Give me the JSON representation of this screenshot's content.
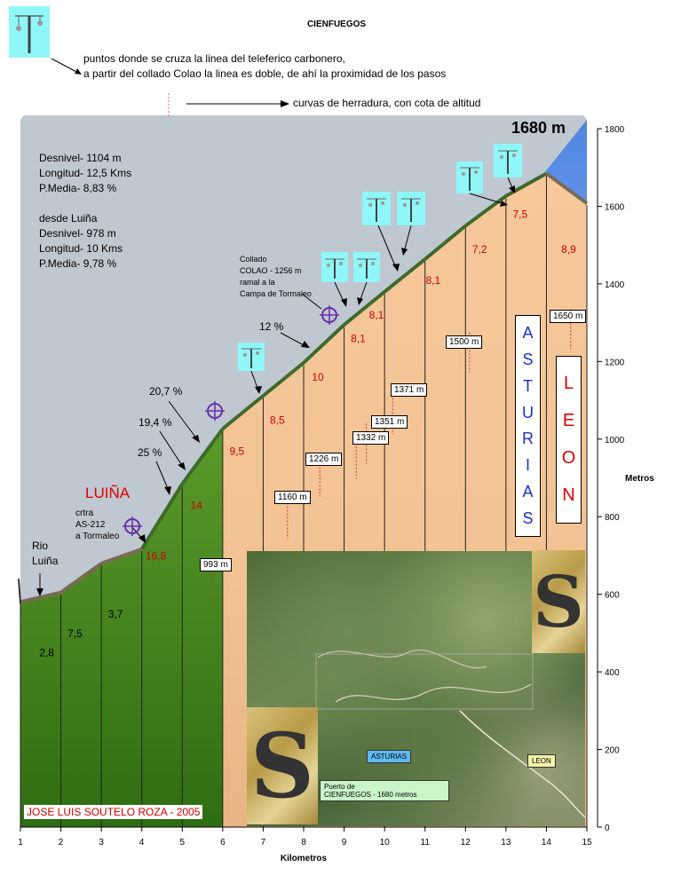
{
  "title": "CIENFUEGOS",
  "legend": {
    "cable_crossing_line1": "puntos donde se cruza la linea del teleferico carbonero,",
    "cable_crossing_line2": "a partir del collado Colao la linea es doble, de ahí la proximidad de los pasos",
    "hairpin": "curvas de herradura, con cota de altitud"
  },
  "stats": {
    "total": [
      "Desnivel- 1104 m",
      "Longitud- 12,5 Kms",
      "P.Media- 8,83 %"
    ],
    "from_label": "desde Luiña",
    "from_luina": [
      "Desnivel- 978 m",
      "Longitud- 10 Kms",
      "P.Media- 9,78 %"
    ]
  },
  "summit_label": "1680 m",
  "labels": {
    "luina": "LUIÑA",
    "crtra": [
      "crtra",
      "AS-212",
      "a Tormaleo"
    ],
    "rio": [
      "Rio",
      "Luiña"
    ],
    "collado": [
      "Collado",
      "COLAO - 1256 m",
      "ramal a la",
      "Campa de Tormaleo"
    ],
    "grades": [
      "25 %",
      "19,4 %",
      "20,7 %",
      "12 %"
    ],
    "asturias": [
      "A",
      "S",
      "T",
      "U",
      "R",
      "I",
      "A",
      "S"
    ],
    "leon": [
      "L",
      "E",
      "O",
      "N"
    ],
    "author": "JOSE LUIS SOUTELO ROZA - 2005",
    "photo_asturias": "ASTURIAS",
    "photo_leon": "LEON",
    "photo_puerto": [
      "Puerto de",
      "CIENFUEGOS - 1680 metros"
    ]
  },
  "colors": {
    "sky_top": "#5b8ee6",
    "sky_bottom": "#cfe1f5",
    "low_fill": "#3e8a1e",
    "high_fill": "#f7c89a",
    "gradient_text": "#cc0000",
    "leon_text": "#dd0000",
    "asturias_text": "#1a2fc7",
    "gondola_bg": "#8ff7f7"
  },
  "chart_data": {
    "type": "area",
    "title": "CIENFUEGOS",
    "xlabel": "Kilometros",
    "ylabel": "Metros",
    "xlim": [
      1,
      15
    ],
    "ylim": [
      0,
      1800
    ],
    "x_ticks": [
      1,
      2,
      3,
      4,
      5,
      6,
      7,
      8,
      9,
      10,
      11,
      12,
      13,
      14,
      15
    ],
    "y_ticks": [
      0,
      200,
      400,
      600,
      800,
      1000,
      1200,
      1400,
      1600,
      1800
    ],
    "profile": [
      {
        "km": 1.0,
        "alt": 576
      },
      {
        "km": 2.0,
        "alt": 600
      },
      {
        "km": 3.0,
        "alt": 675
      },
      {
        "km": 4.0,
        "alt": 712
      },
      {
        "km": 5.0,
        "alt": 880
      },
      {
        "km": 6.0,
        "alt": 1022
      },
      {
        "km": 7.0,
        "alt": 1107
      },
      {
        "km": 8.0,
        "alt": 1192
      },
      {
        "km": 9.0,
        "alt": 1290
      },
      {
        "km": 10.0,
        "alt": 1375
      },
      {
        "km": 11.0,
        "alt": 1459
      },
      {
        "km": 12.0,
        "alt": 1545
      },
      {
        "km": 13.0,
        "alt": 1622
      },
      {
        "km": 14.0,
        "alt": 1680
      },
      {
        "km": 15.0,
        "alt": 1603
      }
    ],
    "segment_grades": [
      {
        "km": 1.65,
        "label": "2,8",
        "alt": 440
      },
      {
        "km": 2.35,
        "label": "7,5",
        "alt": 490
      },
      {
        "km": 3.35,
        "label": "3,7",
        "alt": 540
      },
      {
        "km": 4.35,
        "label": "16,8",
        "alt": 690
      },
      {
        "km": 5.35,
        "label": "14",
        "alt": 820
      },
      {
        "km": 6.35,
        "label": "9,5",
        "alt": 960
      },
      {
        "km": 7.35,
        "label": "8,5",
        "alt": 1040
      },
      {
        "km": 8.35,
        "label": "10",
        "alt": 1150
      },
      {
        "km": 9.35,
        "label": "8,1",
        "alt": 1250
      },
      {
        "km": 9.8,
        "label": "8,1",
        "alt": 1310
      },
      {
        "km": 11.2,
        "label": "8,1",
        "alt": 1400
      },
      {
        "km": 12.35,
        "label": "7,2",
        "alt": 1480
      },
      {
        "km": 13.35,
        "label": "7,5",
        "alt": 1570
      },
      {
        "km": 14.55,
        "label": "8,9",
        "alt": 1480
      }
    ],
    "hairpin_altitudes": [
      {
        "label": "993 m",
        "km": 5.75,
        "alt": 680
      },
      {
        "label": "1160 m",
        "km": 7.6,
        "alt": 845
      },
      {
        "label": "1226 m",
        "km": 8.4,
        "alt": 955
      },
      {
        "label": "1332 m",
        "km": 9.3,
        "alt": 1000
      },
      {
        "label": "1351 m",
        "km": 9.55,
        "alt": 1040
      },
      {
        "label": "1371 m",
        "km": 10.2,
        "alt": 1115
      },
      {
        "label": "1500 m",
        "km": 12.1,
        "alt": 1275
      },
      {
        "label": "1650 m",
        "km": 14.6,
        "alt": 1335
      }
    ]
  }
}
